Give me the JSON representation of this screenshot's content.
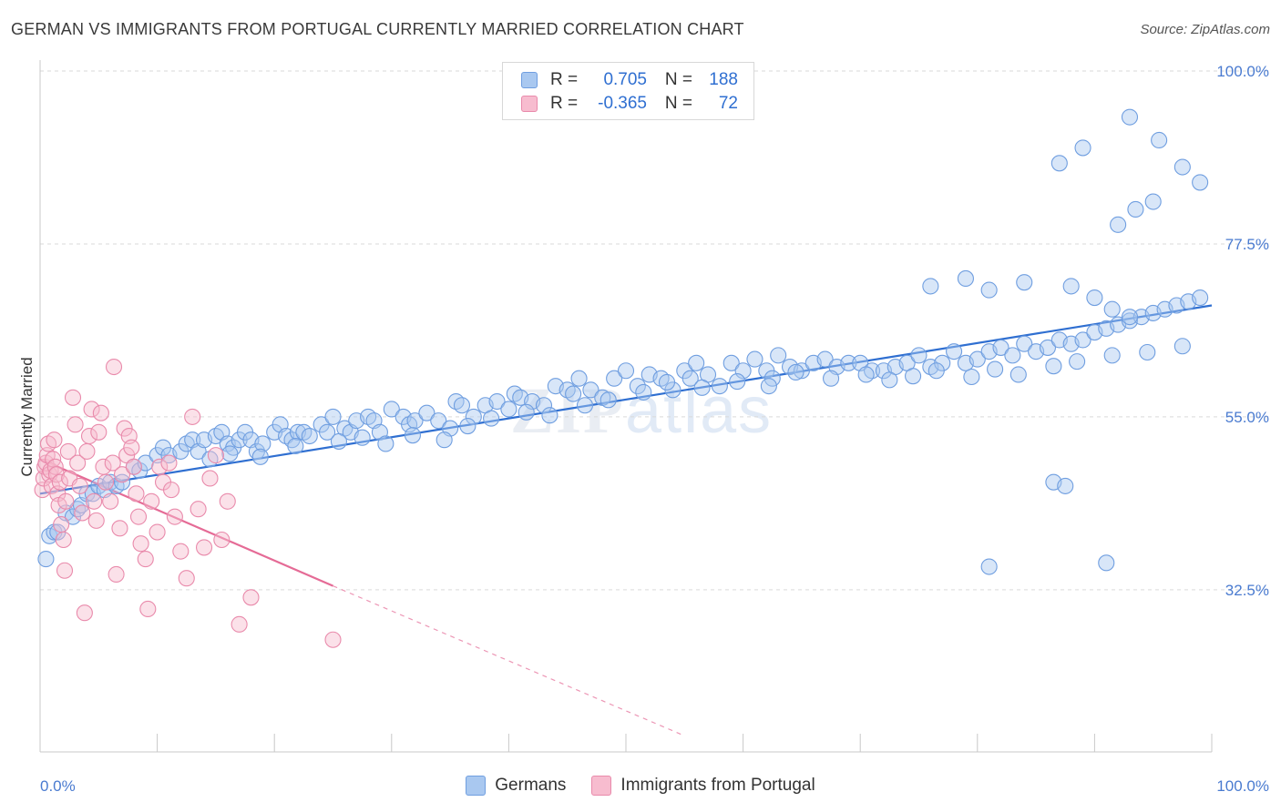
{
  "title": "GERMAN VS IMMIGRANTS FROM PORTUGAL CURRENTLY MARRIED CORRELATION CHART",
  "source": "Source: ZipAtlas.com",
  "watermark": {
    "zip": "ZIP",
    "atlas": "atlas"
  },
  "legend": {
    "rows": [
      {
        "r_label": "R =",
        "r_value": "0.705",
        "n_label": "N =",
        "n_value": "188",
        "color": "#a9c8f0",
        "border": "#6f9ee0"
      },
      {
        "r_label": "R =",
        "r_value": "-0.365",
        "n_label": "N =",
        "n_value": "72",
        "color": "#f7bccf",
        "border": "#e98aab"
      }
    ]
  },
  "bottom_legend": [
    {
      "label": "Germans",
      "color": "#a9c8f0",
      "border": "#6f9ee0"
    },
    {
      "label": "Immigrants from Portugal",
      "color": "#f7bccf",
      "border": "#e98aab"
    }
  ],
  "chart_data": {
    "type": "scatter",
    "ylabel": "Currently Married",
    "x_tick_labels": [
      "0.0%",
      "100.0%"
    ],
    "y_ticks": [
      {
        "value": 32.5,
        "label": "32.5%"
      },
      {
        "value": 55.0,
        "label": "55.0%"
      },
      {
        "value": 77.5,
        "label": "77.5%"
      },
      {
        "value": 100.0,
        "label": "100.0%"
      }
    ],
    "xlim": [
      0,
      100
    ],
    "ylim": [
      11.4,
      100
    ],
    "grid": true,
    "series": [
      {
        "name": "Germans",
        "color": "#6f9ee0",
        "fill": "rgba(169,200,240,0.45)",
        "trend": {
          "x": [
            0,
            100
          ],
          "y": [
            45.0,
            69.5
          ],
          "color": "#2f6fd1"
        },
        "points": [
          [
            0.5,
            36.5
          ],
          [
            0.8,
            39.5
          ],
          [
            1.2,
            40
          ],
          [
            1.5,
            40
          ],
          [
            2.2,
            42.5
          ],
          [
            2.8,
            42
          ],
          [
            3.2,
            43
          ],
          [
            3.5,
            43.5
          ],
          [
            4.0,
            45
          ],
          [
            4.5,
            45
          ],
          [
            5.0,
            46
          ],
          [
            5.5,
            45.5
          ],
          [
            6.0,
            46.5
          ],
          [
            6.5,
            46
          ],
          [
            7.0,
            46.5
          ],
          [
            8.0,
            48.5
          ],
          [
            8.5,
            48
          ],
          [
            9.0,
            49
          ],
          [
            10.0,
            50
          ],
          [
            10.5,
            51
          ],
          [
            11.0,
            50
          ],
          [
            12.0,
            50.5
          ],
          [
            12.5,
            51.5
          ],
          [
            13.0,
            52
          ],
          [
            13.5,
            50.5
          ],
          [
            14.0,
            52
          ],
          [
            15.0,
            52.5
          ],
          [
            15.5,
            53
          ],
          [
            16.0,
            51.5
          ],
          [
            16.5,
            51
          ],
          [
            17.0,
            52
          ],
          [
            17.5,
            53
          ],
          [
            18.0,
            52
          ],
          [
            18.5,
            50.5
          ],
          [
            19.0,
            51.5
          ],
          [
            20.0,
            53
          ],
          [
            20.5,
            54
          ],
          [
            21.0,
            52.5
          ],
          [
            21.5,
            52
          ],
          [
            22.0,
            53
          ],
          [
            22.5,
            53
          ],
          [
            23.0,
            52.5
          ],
          [
            24.0,
            54
          ],
          [
            24.5,
            53
          ],
          [
            25.0,
            55
          ],
          [
            26.0,
            53.5
          ],
          [
            26.5,
            53
          ],
          [
            27.0,
            54.5
          ],
          [
            28.0,
            55
          ],
          [
            28.5,
            54.5
          ],
          [
            29.0,
            53
          ],
          [
            30.0,
            56
          ],
          [
            31.0,
            55
          ],
          [
            31.5,
            54
          ],
          [
            32.0,
            54.5
          ],
          [
            33.0,
            55.5
          ],
          [
            34.0,
            54.5
          ],
          [
            35.0,
            53.5
          ],
          [
            35.5,
            57
          ],
          [
            36.0,
            56.5
          ],
          [
            37.0,
            55
          ],
          [
            38.0,
            56.5
          ],
          [
            39.0,
            57
          ],
          [
            40.0,
            56
          ],
          [
            40.5,
            58
          ],
          [
            41.0,
            57.5
          ],
          [
            42.0,
            57
          ],
          [
            43.0,
            56.5
          ],
          [
            44.0,
            59
          ],
          [
            45.0,
            58.5
          ],
          [
            45.5,
            58
          ],
          [
            46.0,
            60
          ],
          [
            47.0,
            58.5
          ],
          [
            48.0,
            57.5
          ],
          [
            49.0,
            60
          ],
          [
            50.0,
            61
          ],
          [
            51.0,
            59
          ],
          [
            52.0,
            60.5
          ],
          [
            53.0,
            60
          ],
          [
            54.0,
            58.5
          ],
          [
            55.0,
            61
          ],
          [
            55.5,
            60
          ],
          [
            56.0,
            62
          ],
          [
            57.0,
            60.5
          ],
          [
            58.0,
            59
          ],
          [
            59.0,
            62
          ],
          [
            60.0,
            61
          ],
          [
            61.0,
            62.5
          ],
          [
            62.0,
            61
          ],
          [
            62.5,
            60
          ],
          [
            63.0,
            63
          ],
          [
            64.0,
            61.5
          ],
          [
            65.0,
            61
          ],
          [
            66.0,
            62
          ],
          [
            67.0,
            62.5
          ],
          [
            68.0,
            61.5
          ],
          [
            69.0,
            62
          ],
          [
            70.0,
            62
          ],
          [
            71.0,
            61
          ],
          [
            72.0,
            61
          ],
          [
            73.0,
            61.5
          ],
          [
            74.0,
            62
          ],
          [
            75.0,
            63
          ],
          [
            76.0,
            61.5
          ],
          [
            77.0,
            62
          ],
          [
            78.0,
            63.5
          ],
          [
            79.0,
            62
          ],
          [
            80.0,
            62.5
          ],
          [
            81.0,
            63.5
          ],
          [
            82.0,
            64
          ],
          [
            83.0,
            63
          ],
          [
            84.0,
            64.5
          ],
          [
            85.0,
            63.5
          ],
          [
            86.0,
            64
          ],
          [
            87.0,
            65
          ],
          [
            88.0,
            64.5
          ],
          [
            89.0,
            65
          ],
          [
            90.0,
            66
          ],
          [
            91.0,
            66.5
          ],
          [
            92.0,
            67
          ],
          [
            93.0,
            67.5
          ],
          [
            94.0,
            68
          ],
          [
            95.0,
            68.5
          ],
          [
            96.0,
            69
          ],
          [
            97.0,
            69.5
          ],
          [
            98.0,
            70
          ],
          [
            99.0,
            70.5
          ],
          [
            14.5,
            49.5
          ],
          [
            16.2,
            50.2
          ],
          [
            18.8,
            49.8
          ],
          [
            21.8,
            51.2
          ],
          [
            25.5,
            51.8
          ],
          [
            27.5,
            52.3
          ],
          [
            29.5,
            51.5
          ],
          [
            31.8,
            52.6
          ],
          [
            34.5,
            52.0
          ],
          [
            36.5,
            53.8
          ],
          [
            38.5,
            54.8
          ],
          [
            41.5,
            55.6
          ],
          [
            43.5,
            55.2
          ],
          [
            46.5,
            56.5
          ],
          [
            48.5,
            57.2
          ],
          [
            51.5,
            58.2
          ],
          [
            53.5,
            59.5
          ],
          [
            56.5,
            58.8
          ],
          [
            59.5,
            59.6
          ],
          [
            62.2,
            59.0
          ],
          [
            64.5,
            60.8
          ],
          [
            67.5,
            60.0
          ],
          [
            70.5,
            60.5
          ],
          [
            72.5,
            59.8
          ],
          [
            74.5,
            60.3
          ],
          [
            76.5,
            61.0
          ],
          [
            79.5,
            60.2
          ],
          [
            81.5,
            61.2
          ],
          [
            83.5,
            60.5
          ],
          [
            86.5,
            61.6
          ],
          [
            88.5,
            62.2
          ],
          [
            91.5,
            63.0
          ],
          [
            94.5,
            63.4
          ],
          [
            97.5,
            64.2
          ],
          [
            92.0,
            80.0
          ],
          [
            93.5,
            82.0
          ],
          [
            95.0,
            83.0
          ],
          [
            87.0,
            88.0
          ],
          [
            89.0,
            90.0
          ],
          [
            93.0,
            94.0
          ],
          [
            95.5,
            91.0
          ],
          [
            97.5,
            87.5
          ],
          [
            99.0,
            85.5
          ],
          [
            76.0,
            72.0
          ],
          [
            79.0,
            73.0
          ],
          [
            81.0,
            71.5
          ],
          [
            84.0,
            72.5
          ],
          [
            88.0,
            72.0
          ],
          [
            90.0,
            70.5
          ],
          [
            91.5,
            69.0
          ],
          [
            93.0,
            68.0
          ],
          [
            86.5,
            46.5
          ],
          [
            87.5,
            46.0
          ],
          [
            81.0,
            35.5
          ],
          [
            91.0,
            36.0
          ]
        ]
      },
      {
        "name": "Immigrants from Portugal",
        "color": "#e98aab",
        "fill": "rgba(247,188,207,0.45)",
        "trend": {
          "x": [
            0,
            25
          ],
          "y": [
            49.5,
            33.0
          ],
          "color": "#e56b96",
          "dash_to": [
            55,
            13.5
          ]
        },
        "points": [
          [
            0.2,
            45.5
          ],
          [
            0.3,
            47.0
          ],
          [
            0.4,
            48.5
          ],
          [
            0.5,
            49.0
          ],
          [
            0.6,
            50.0
          ],
          [
            0.7,
            51.5
          ],
          [
            0.8,
            47.5
          ],
          [
            0.9,
            48.0
          ],
          [
            1.0,
            46.0
          ],
          [
            1.1,
            49.5
          ],
          [
            1.2,
            52.0
          ],
          [
            1.3,
            48.5
          ],
          [
            1.4,
            47.5
          ],
          [
            1.5,
            45.0
          ],
          [
            1.6,
            43.5
          ],
          [
            1.7,
            46.5
          ],
          [
            1.8,
            41.0
          ],
          [
            2.0,
            39.0
          ],
          [
            2.1,
            35.0
          ],
          [
            2.2,
            44.0
          ],
          [
            2.4,
            50.5
          ],
          [
            2.5,
            47.0
          ],
          [
            2.8,
            57.5
          ],
          [
            3.0,
            54.0
          ],
          [
            3.2,
            49.0
          ],
          [
            3.4,
            46.0
          ],
          [
            3.6,
            42.5
          ],
          [
            3.8,
            29.5
          ],
          [
            4.0,
            50.5
          ],
          [
            4.2,
            52.5
          ],
          [
            4.4,
            56.0
          ],
          [
            4.6,
            44.0
          ],
          [
            4.8,
            41.5
          ],
          [
            5.0,
            53.0
          ],
          [
            5.2,
            55.5
          ],
          [
            5.4,
            48.5
          ],
          [
            5.6,
            46.5
          ],
          [
            6.0,
            44.0
          ],
          [
            6.2,
            49.0
          ],
          [
            6.5,
            34.5
          ],
          [
            6.8,
            40.5
          ],
          [
            7.0,
            47.5
          ],
          [
            7.2,
            53.5
          ],
          [
            7.4,
            50.0
          ],
          [
            7.6,
            52.5
          ],
          [
            7.8,
            51.0
          ],
          [
            8.0,
            48.5
          ],
          [
            8.2,
            45.0
          ],
          [
            8.4,
            42.0
          ],
          [
            8.6,
            38.5
          ],
          [
            9.0,
            36.5
          ],
          [
            9.2,
            30.0
          ],
          [
            9.5,
            44.0
          ],
          [
            10.0,
            40.0
          ],
          [
            10.2,
            48.5
          ],
          [
            10.5,
            46.5
          ],
          [
            11.0,
            49.0
          ],
          [
            11.2,
            45.5
          ],
          [
            11.5,
            42.0
          ],
          [
            12.0,
            37.5
          ],
          [
            12.5,
            34.0
          ],
          [
            13.0,
            55.0
          ],
          [
            13.5,
            43.0
          ],
          [
            14.0,
            38.0
          ],
          [
            14.5,
            47.0
          ],
          [
            15.0,
            50.0
          ],
          [
            15.5,
            39.0
          ],
          [
            16.0,
            44.0
          ],
          [
            17.0,
            28.0
          ],
          [
            18.0,
            31.5
          ],
          [
            25.0,
            26.0
          ],
          [
            6.3,
            61.5
          ]
        ]
      }
    ]
  }
}
